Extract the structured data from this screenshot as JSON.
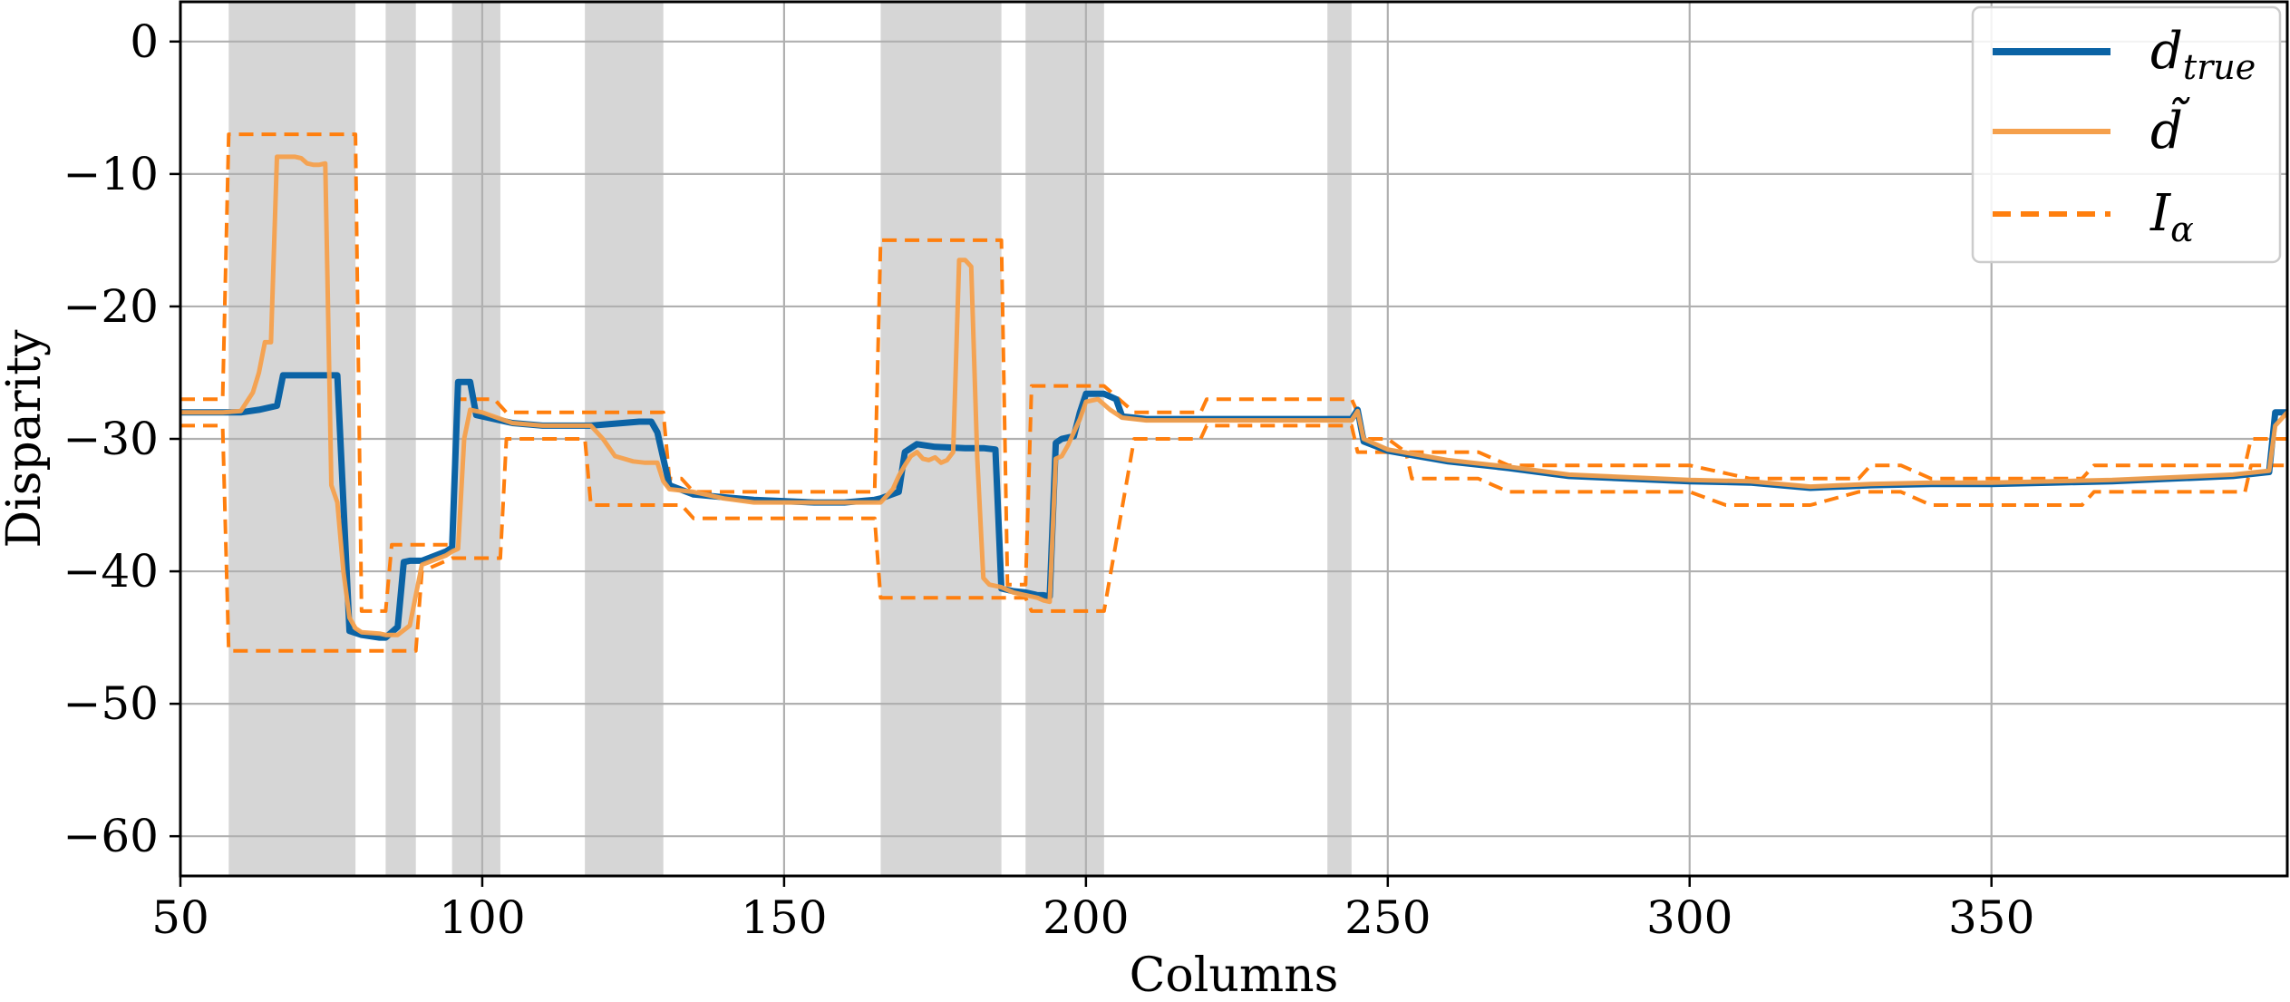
{
  "chart_data": {
    "type": "line",
    "xlabel": "Columns",
    "ylabel": "Disparity",
    "xlim": [
      50,
      399
    ],
    "ylim": [
      -63,
      3
    ],
    "xticks": [
      "50",
      "100",
      "150",
      "200",
      "250",
      "300",
      "350"
    ],
    "xtick_values": [
      50,
      100,
      150,
      200,
      250,
      300,
      350
    ],
    "yticks": [
      "0",
      "−10",
      "−20",
      "−30",
      "−40",
      "−50",
      "−60"
    ],
    "ytick_values": [
      0,
      -10,
      -20,
      -30,
      -40,
      -50,
      -60
    ],
    "grid": true,
    "legend_position": "top-right",
    "colors": {
      "true": "#0b63a5",
      "estimate": "#f5a04c",
      "interval": "#ff7f0e",
      "shade": "#d6d6d6",
      "grid": "#b0b0b0"
    },
    "shaded_regions": [
      [
        58,
        79
      ],
      [
        84,
        89
      ],
      [
        95,
        103
      ],
      [
        117,
        130
      ],
      [
        166,
        186
      ],
      [
        190,
        203
      ],
      [
        240,
        244
      ]
    ],
    "legend": [
      {
        "main": "d",
        "sub": "true",
        "style": "solid-thick",
        "color": "#0b63a5"
      },
      {
        "main": "d̃",
        "sub": "",
        "style": "solid",
        "color": "#f5a04c"
      },
      {
        "main": "I",
        "sub": "α",
        "style": "dashed",
        "color": "#ff7f0e"
      }
    ],
    "series": [
      {
        "key": "true",
        "x": [
          50,
          57,
          60,
          63,
          66,
          67,
          72,
          76,
          78,
          80,
          83,
          84,
          86,
          87,
          88,
          90,
          94,
          95,
          96,
          98,
          99,
          103,
          105,
          110,
          118,
          126,
          128,
          129,
          131,
          135,
          140,
          145,
          155,
          160,
          165,
          166,
          169,
          170,
          172,
          175,
          180,
          183,
          185,
          186,
          188,
          190,
          192,
          193,
          194,
          195,
          196,
          198,
          199,
          200,
          201,
          203,
          205,
          206,
          210,
          220,
          230,
          240,
          244,
          245,
          246,
          250,
          255,
          260,
          270,
          280,
          300,
          310,
          320,
          330,
          340,
          350,
          360,
          370,
          380,
          390,
          396,
          397,
          399
        ],
        "y": [
          -28,
          -28,
          -28,
          -27.8,
          -27.5,
          -25.2,
          -25.2,
          -25.2,
          -44.5,
          -44.8,
          -45,
          -45,
          -44.2,
          -39.3,
          -39.2,
          -39.2,
          -38.5,
          -38.2,
          -25.7,
          -25.7,
          -28.2,
          -28.6,
          -28.8,
          -29,
          -29,
          -28.7,
          -28.7,
          -29.5,
          -33.5,
          -34.2,
          -34.4,
          -34.6,
          -34.8,
          -34.8,
          -34.6,
          -34.5,
          -34,
          -31,
          -30.4,
          -30.6,
          -30.7,
          -30.7,
          -30.8,
          -41.3,
          -41.5,
          -41.6,
          -41.8,
          -41.8,
          -41.9,
          -30.3,
          -30,
          -29.8,
          -28,
          -26.6,
          -26.6,
          -26.6,
          -27,
          -28.3,
          -28.5,
          -28.5,
          -28.5,
          -28.5,
          -28.5,
          -27.8,
          -30.2,
          -30.9,
          -31.3,
          -31.7,
          -32.2,
          -32.8,
          -33.2,
          -33.3,
          -33.7,
          -33.5,
          -33.4,
          -33.4,
          -33.3,
          -33.2,
          -33,
          -32.8,
          -32.5,
          -28,
          -28
        ]
      },
      {
        "key": "estimate",
        "x": [
          50,
          57,
          60,
          61,
          62,
          63,
          64,
          65,
          66,
          67,
          68,
          69,
          70,
          71,
          72,
          73,
          74,
          75,
          76,
          77,
          78,
          79,
          80,
          83,
          84,
          86,
          88,
          90,
          94,
          95,
          96,
          97,
          98,
          100,
          105,
          110,
          118,
          120,
          122,
          125,
          127,
          128,
          129,
          130,
          131,
          135,
          140,
          145,
          155,
          160,
          165,
          166,
          168,
          169,
          170,
          171,
          172,
          173,
          174,
          175,
          176,
          177,
          178,
          179,
          180,
          181,
          182,
          183,
          184,
          186,
          188,
          190,
          192,
          193,
          194,
          195,
          196,
          197,
          198,
          199,
          200,
          202,
          204,
          206,
          210,
          220,
          230,
          240,
          244,
          245,
          246,
          250,
          255,
          260,
          270,
          280,
          300,
          310,
          320,
          330,
          340,
          350,
          360,
          370,
          380,
          390,
          396,
          397,
          399
        ],
        "y": [
          -28,
          -28,
          -27.9,
          -27.2,
          -26.5,
          -25,
          -22.7,
          -22.7,
          -8.7,
          -8.7,
          -8.7,
          -8.7,
          -8.8,
          -9.2,
          -9.3,
          -9.3,
          -9.2,
          -33.5,
          -34.8,
          -40,
          -43.5,
          -44.3,
          -44.6,
          -44.7,
          -44.8,
          -44.8,
          -44.1,
          -39.5,
          -38.8,
          -38.5,
          -38.3,
          -30,
          -27.8,
          -28,
          -28.8,
          -29,
          -29,
          -30,
          -31.3,
          -31.7,
          -31.8,
          -31.8,
          -31.8,
          -33.2,
          -33.8,
          -34,
          -34.5,
          -34.8,
          -34.8,
          -34.8,
          -34.8,
          -34.8,
          -33.8,
          -32.8,
          -32,
          -31.3,
          -31,
          -31.5,
          -31.6,
          -31.4,
          -31.8,
          -31.6,
          -31,
          -16.5,
          -16.5,
          -17,
          -31.5,
          -40.5,
          -41,
          -41.2,
          -41.6,
          -41.8,
          -42,
          -42.2,
          -42.3,
          -31.5,
          -31.3,
          -30.5,
          -29.5,
          -28.5,
          -27.2,
          -27,
          -27.8,
          -28.4,
          -28.6,
          -28.6,
          -28.6,
          -28.6,
          -28.6,
          -27.9,
          -30,
          -30.8,
          -31.2,
          -31.6,
          -32.1,
          -32.7,
          -33.1,
          -33.2,
          -33.6,
          -33.4,
          -33.3,
          -33.3,
          -33.2,
          -33.1,
          -32.9,
          -32.7,
          -32.4,
          -29,
          -28
        ]
      },
      {
        "key": "interval_upper",
        "x": [
          50,
          57,
          58,
          79,
          80,
          84,
          85,
          88,
          89,
          95,
          96,
          102,
          103,
          104,
          105,
          116,
          117,
          130,
          131,
          133,
          135,
          140,
          165,
          166,
          186,
          187,
          190,
          191,
          202,
          203,
          208,
          209,
          219,
          220,
          230,
          241,
          243,
          244,
          245,
          246,
          250,
          253,
          254,
          265,
          270,
          290,
          300,
          310,
          320,
          322,
          328,
          330,
          335,
          340,
          350,
          360,
          365,
          367,
          370,
          380,
          392,
          393,
          399
        ],
        "y": [
          -27,
          -27,
          -7,
          -7,
          -43,
          -43,
          -38,
          -38,
          -38,
          -38,
          -27,
          -27,
          -27.5,
          -28,
          -28,
          -28,
          -28,
          -28,
          -33,
          -33,
          -34,
          -34,
          -34,
          -15,
          -15,
          -41,
          -41,
          -26,
          -26,
          -26,
          -28,
          -28,
          -28,
          -27,
          -27,
          -27,
          -27,
          -27,
          -28,
          -30,
          -30,
          -31,
          -31,
          -31,
          -32,
          -32,
          -32,
          -33,
          -33,
          -33,
          -33,
          -32,
          -32,
          -33,
          -33,
          -33,
          -33,
          -32,
          -32,
          -32,
          -32,
          -30,
          -30
        ]
      },
      {
        "key": "interval_lower",
        "x": [
          50,
          57,
          58,
          79,
          80,
          84,
          85,
          89,
          90,
          95,
          96,
          103,
          104,
          117,
          118,
          130,
          131,
          133,
          135,
          140,
          165,
          166,
          186,
          187,
          190,
          191,
          202,
          203,
          208,
          209,
          219,
          220,
          230,
          241,
          243,
          244,
          245,
          246,
          250,
          253,
          254,
          265,
          270,
          290,
          300,
          306,
          310,
          320,
          328,
          330,
          335,
          340,
          350,
          360,
          365,
          367,
          370,
          380,
          392,
          393,
          399
        ],
        "y": [
          -29,
          -29,
          -46,
          -46,
          -46,
          -46,
          -46,
          -46,
          -40,
          -39,
          -39,
          -39,
          -30,
          -30,
          -35,
          -35,
          -35,
          -35,
          -36,
          -36,
          -36,
          -42,
          -42,
          -42,
          -42,
          -43,
          -43,
          -43,
          -30,
          -30,
          -30,
          -29,
          -29,
          -29,
          -29,
          -29,
          -31,
          -31,
          -31,
          -31,
          -33,
          -33,
          -34,
          -34,
          -34,
          -35,
          -35,
          -35,
          -34,
          -34,
          -34,
          -35,
          -35,
          -35,
          -35,
          -34,
          -34,
          -34,
          -34,
          -32,
          -32
        ]
      }
    ]
  }
}
